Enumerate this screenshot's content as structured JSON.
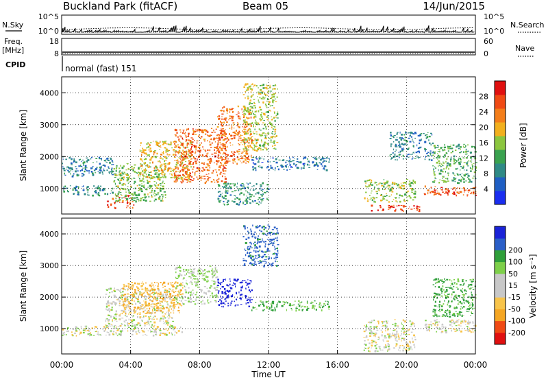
{
  "header": {
    "title": "Buckland Park (fitACF)",
    "beam": "Beam 05",
    "date": "14/Jun/2015"
  },
  "noise_panel": {
    "left_label": "N.Sky",
    "right_label": "N.Search",
    "ticks_left": [
      "10^5",
      "10^0"
    ],
    "ticks_right": [
      "10^5",
      "10^0"
    ]
  },
  "freq_panel": {
    "label_top": "Freq.",
    "label_bottom": "[MHz]",
    "ticks_left": [
      "18",
      "8"
    ],
    "ticks_right": [
      "60",
      "0"
    ],
    "right_label": "Nave"
  },
  "cpid": {
    "label": "CPID",
    "mode_text": "normal (fast) 151"
  },
  "colors": {
    "power_scale": [
      "#1a2ef0",
      "#1f5fc4",
      "#2f8a86",
      "#3aa24f",
      "#8cc63f",
      "#f2b01e",
      "#f47e1a",
      "#f04a14",
      "#e01010"
    ],
    "velocity_scale": [
      "#e01010",
      "#f04a14",
      "#f5a623",
      "#f8c44a",
      "#c8c8c8",
      "#c8c8c8",
      "#7ed04a",
      "#2f9f3a",
      "#2a5fc8",
      "#1a23d8"
    ]
  },
  "chart_data": [
    {
      "type": "heatmap",
      "name": "power",
      "xlabel": "Time UT",
      "ylabel": "Slant Range [km]",
      "colorbar_label": "Power [dB]",
      "colorbar_ticks": [
        "4",
        "8",
        "12",
        "16",
        "20",
        "24",
        "28"
      ],
      "colorbar_range": [
        0,
        32
      ],
      "x_ticks": [
        "00:00",
        "04:00",
        "08:00",
        "12:00",
        "16:00",
        "20:00",
        "00:00"
      ],
      "x_range_hours": [
        0,
        24
      ],
      "y_ticks": [
        "1000",
        "2000",
        "3000",
        "4000"
      ],
      "y_range": [
        200,
        4500
      ],
      "regions": [
        {
          "t0": 0.0,
          "t1": 3.0,
          "r0": 800,
          "r1": 1100,
          "v": 9
        },
        {
          "t0": 0.0,
          "t1": 3.0,
          "r0": 1400,
          "r1": 2000,
          "v": 8
        },
        {
          "t0": 2.6,
          "t1": 4.2,
          "r0": 400,
          "r1": 800,
          "v": 27
        },
        {
          "t0": 3.0,
          "t1": 6.0,
          "r0": 600,
          "r1": 1800,
          "v": 15
        },
        {
          "t0": 4.5,
          "t1": 7.5,
          "r0": 1300,
          "r1": 2500,
          "v": 19
        },
        {
          "t0": 6.5,
          "t1": 9.5,
          "r0": 1200,
          "r1": 2900,
          "v": 25
        },
        {
          "t0": 9.0,
          "t1": 11.0,
          "r0": 1800,
          "r1": 3600,
          "v": 24
        },
        {
          "t0": 10.5,
          "t1": 12.5,
          "r0": 2200,
          "r1": 4300,
          "v": 17
        },
        {
          "t0": 11.0,
          "t1": 15.5,
          "r0": 1600,
          "r1": 2000,
          "v": 7
        },
        {
          "t0": 9.0,
          "t1": 12.0,
          "r0": 500,
          "r1": 1200,
          "v": 10
        },
        {
          "t0": 17.5,
          "t1": 20.5,
          "r0": 600,
          "r1": 1300,
          "v": 16
        },
        {
          "t0": 17.8,
          "t1": 20.8,
          "r0": 300,
          "r1": 500,
          "v": 28
        },
        {
          "t0": 19.0,
          "t1": 21.5,
          "r0": 1900,
          "r1": 2800,
          "v": 8
        },
        {
          "t0": 21.0,
          "t1": 24.0,
          "r0": 800,
          "r1": 1100,
          "v": 26
        },
        {
          "t0": 21.5,
          "t1": 24.0,
          "r0": 1200,
          "r1": 2400,
          "v": 13
        }
      ]
    },
    {
      "type": "heatmap",
      "name": "velocity",
      "xlabel": "Time UT",
      "ylabel": "Slant Range [km]",
      "colorbar_label": "Velocity [m s⁻¹]",
      "colorbar_ticks": [
        "-200",
        "-100",
        "-50",
        "-15",
        "15",
        "50",
        "100",
        "200"
      ],
      "x_ticks": [
        "00:00",
        "04:00",
        "08:00",
        "12:00",
        "16:00",
        "20:00",
        "00:00"
      ],
      "x_range_hours": [
        0,
        24
      ],
      "y_ticks": [
        "1000",
        "2000",
        "3000",
        "4000"
      ],
      "y_range": [
        200,
        4500
      ],
      "regions": [
        {
          "t0": 0.0,
          "t1": 7.0,
          "r0": 800,
          "r1": 1100,
          "v": 0
        },
        {
          "t0": 2.5,
          "t1": 6.5,
          "r0": 1100,
          "r1": 2300,
          "v": 0
        },
        {
          "t0": 3.5,
          "t1": 7.0,
          "r0": 1500,
          "r1": 2500,
          "v": -60
        },
        {
          "t0": 6.5,
          "t1": 9.0,
          "r0": 1800,
          "r1": 3000,
          "v": 20
        },
        {
          "t0": 9.0,
          "t1": 11.0,
          "r0": 1700,
          "r1": 2600,
          "v": 250
        },
        {
          "t0": 10.5,
          "t1": 12.5,
          "r0": 3000,
          "r1": 4300,
          "v": 120
        },
        {
          "t0": 11.0,
          "t1": 15.5,
          "r0": 1600,
          "r1": 1900,
          "v": 60
        },
        {
          "t0": 17.5,
          "t1": 20.5,
          "r0": 300,
          "r1": 1300,
          "v": 0
        },
        {
          "t0": 21.0,
          "t1": 24.0,
          "r0": 900,
          "r1": 1300,
          "v": 0
        },
        {
          "t0": 21.5,
          "t1": 24.0,
          "r0": 1400,
          "r1": 2600,
          "v": 60
        }
      ]
    }
  ]
}
